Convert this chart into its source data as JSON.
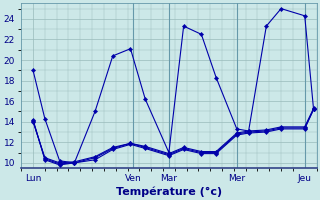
{
  "background_color": "#cce8e8",
  "plot_bg_color": "#cce8e8",
  "grid_color": "#99bbbb",
  "line_color": "#0000aa",
  "xlabel": "Température (°c)",
  "ylim": [
    9.5,
    25.5
  ],
  "yticks": [
    10,
    12,
    14,
    16,
    18,
    20,
    22,
    24
  ],
  "xlim": [
    0,
    100
  ],
  "day_labels": [
    "Lun",
    "Ven",
    "Mar",
    "Mer",
    "Jeu"
  ],
  "day_x": [
    4,
    38,
    50,
    73,
    96
  ],
  "vline_x": [
    38,
    50,
    73,
    96
  ],
  "tick_fontsize": 6.5,
  "xlabel_fontsize": 8,
  "series": [
    {
      "x": [
        4,
        8,
        13,
        18,
        25,
        31,
        37,
        42,
        50,
        55,
        61,
        66,
        73,
        77,
        83,
        88,
        96,
        99
      ],
      "y": [
        19.0,
        14.3,
        10.2,
        10.0,
        15.0,
        20.4,
        21.1,
        16.2,
        11.0,
        23.3,
        22.5,
        18.3,
        13.3,
        13.1,
        23.3,
        25.0,
        24.3,
        15.2
      ]
    },
    {
      "x": [
        4,
        8,
        13,
        18,
        25,
        31,
        37,
        42,
        50,
        55,
        61,
        66,
        73,
        77,
        83,
        88,
        96,
        99
      ],
      "y": [
        14.2,
        10.3,
        9.8,
        10.0,
        10.3,
        11.3,
        11.8,
        11.4,
        10.7,
        11.3,
        10.9,
        10.9,
        12.7,
        12.9,
        13.0,
        13.3,
        13.3,
        15.2
      ]
    },
    {
      "x": [
        4,
        8,
        13,
        18,
        25,
        31,
        37,
        42,
        50,
        55,
        61,
        66,
        73,
        77,
        83,
        88,
        96,
        99
      ],
      "y": [
        14.0,
        10.5,
        10.0,
        10.1,
        10.6,
        11.5,
        11.9,
        11.6,
        10.9,
        11.5,
        11.1,
        11.1,
        12.9,
        13.1,
        13.2,
        13.5,
        13.5,
        15.3
      ]
    },
    {
      "x": [
        4,
        8,
        13,
        18,
        25,
        31,
        37,
        42,
        50,
        55,
        61,
        66,
        73,
        77,
        83,
        88,
        96,
        99
      ],
      "y": [
        14.1,
        10.4,
        9.9,
        10.0,
        10.5,
        11.4,
        11.9,
        11.5,
        10.8,
        11.4,
        11.0,
        11.0,
        12.8,
        13.0,
        13.1,
        13.4,
        13.4,
        15.2
      ]
    }
  ]
}
